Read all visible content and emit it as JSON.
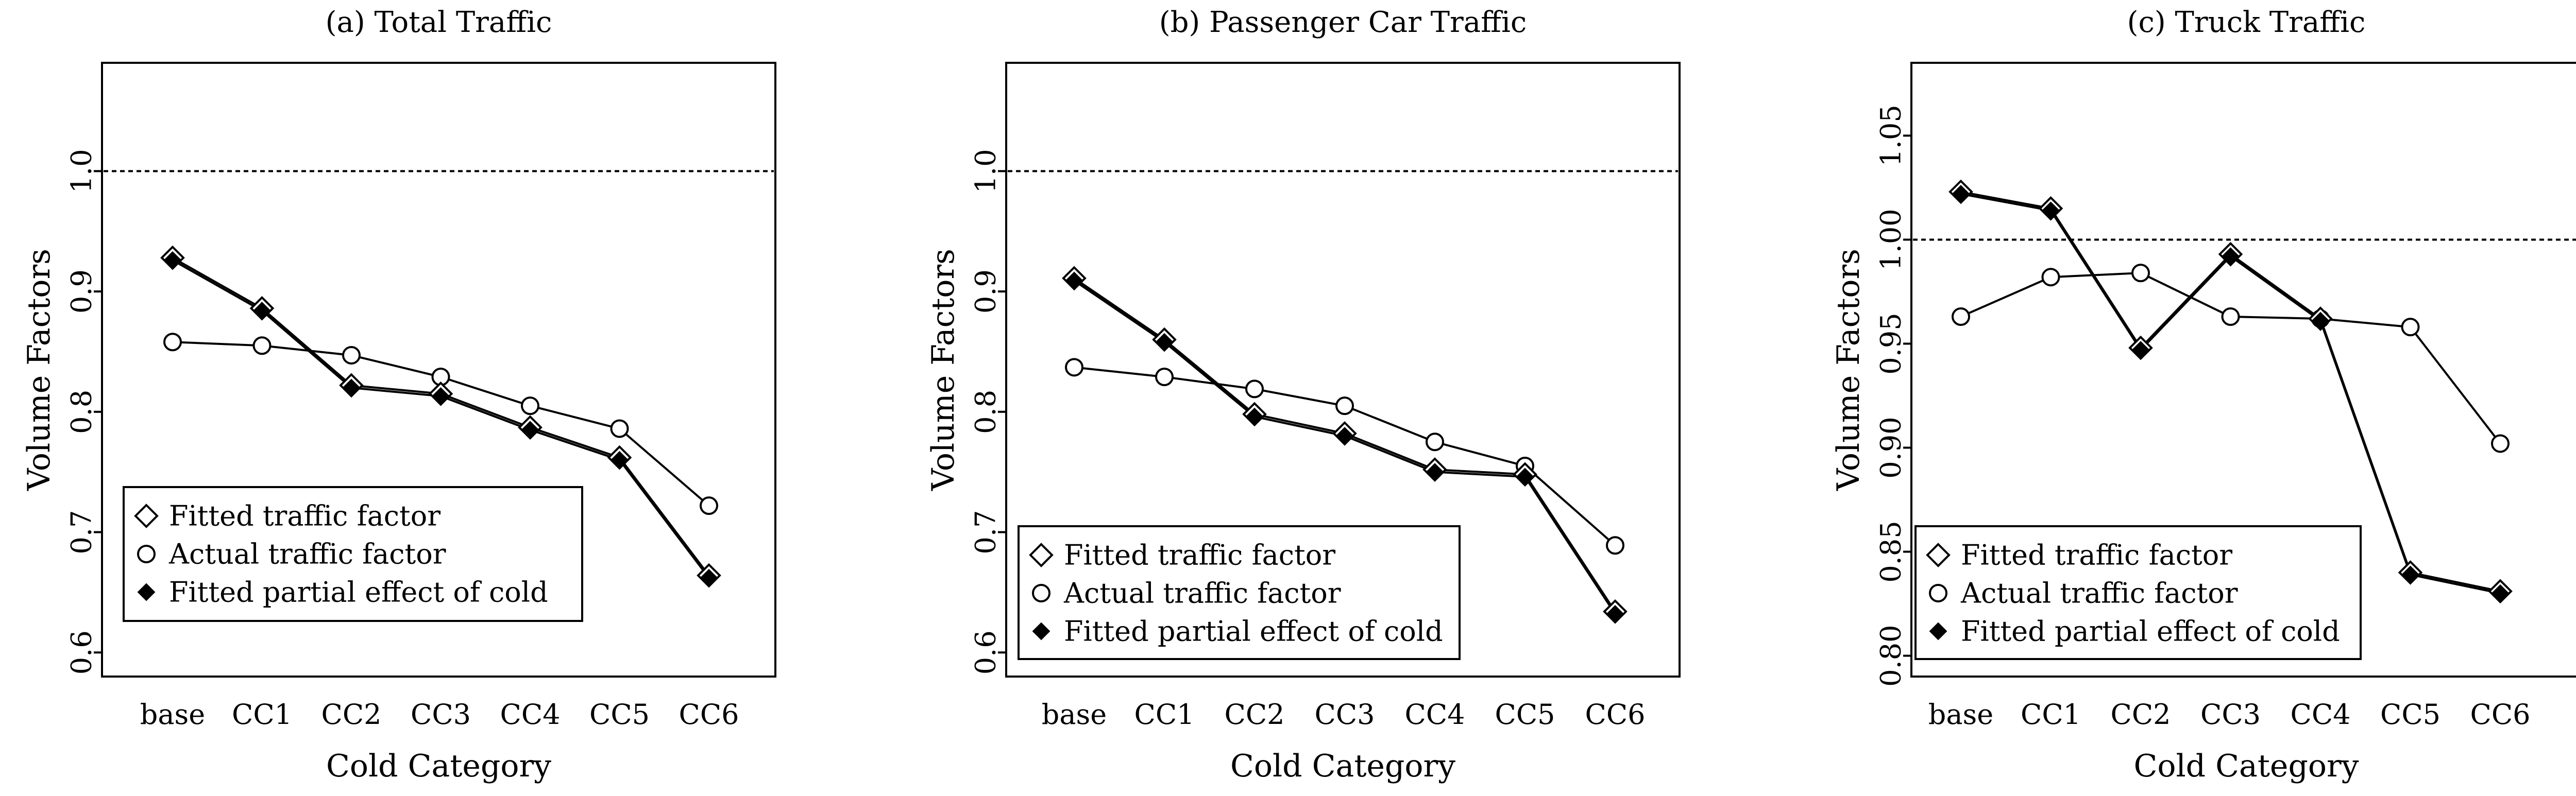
{
  "chart_data": [
    {
      "type": "line",
      "title": "(a) Total Traffic",
      "xlabel": "Cold Category",
      "ylabel": "Volume Factors",
      "categories": [
        "base",
        "CC1",
        "CC2",
        "CC3",
        "CC4",
        "CC5",
        "CC6"
      ],
      "yticks": [
        0.6,
        0.7,
        0.8,
        0.9,
        1.0
      ],
      "ytick_labels": [
        "0.6",
        "0.7",
        "0.8",
        "0.9",
        "1.0"
      ],
      "ylim": [
        0.58,
        1.09
      ],
      "reference_line": 1.0,
      "grid": false,
      "legend_position": "bottom-left",
      "series": [
        {
          "name": "Fitted traffic factor",
          "marker": "diamond-open",
          "values": [
            0.928,
            0.886,
            0.822,
            0.815,
            0.787,
            0.762,
            0.664
          ]
        },
        {
          "name": "Actual traffic factor",
          "marker": "circle-open",
          "values": [
            0.858,
            0.855,
            0.847,
            0.829,
            0.805,
            0.786,
            0.722
          ]
        },
        {
          "name": "Fitted partial effect of cold",
          "marker": "circle-filled",
          "values": [
            0.926,
            0.884,
            0.82,
            0.813,
            0.785,
            0.76,
            0.662
          ]
        }
      ]
    },
    {
      "type": "line",
      "title": "(b) Passenger Car Traffic",
      "xlabel": "Cold Category",
      "ylabel": "Volume Factors",
      "categories": [
        "base",
        "CC1",
        "CC2",
        "CC3",
        "CC4",
        "CC5",
        "CC6"
      ],
      "yticks": [
        0.6,
        0.7,
        0.8,
        0.9,
        1.0
      ],
      "ytick_labels": [
        "0.6",
        "0.7",
        "0.8",
        "0.9",
        "1.0"
      ],
      "ylim": [
        0.58,
        1.09
      ],
      "reference_line": 1.0,
      "grid": false,
      "legend_position": "bottom-left",
      "series": [
        {
          "name": "Fitted traffic factor",
          "marker": "diamond-open",
          "values": [
            0.911,
            0.86,
            0.798,
            0.782,
            0.752,
            0.748,
            0.634
          ]
        },
        {
          "name": "Actual traffic factor",
          "marker": "circle-open",
          "values": [
            0.837,
            0.829,
            0.819,
            0.805,
            0.775,
            0.755,
            0.689
          ]
        },
        {
          "name": "Fitted partial effect of cold",
          "marker": "circle-filled",
          "values": [
            0.909,
            0.858,
            0.796,
            0.78,
            0.75,
            0.746,
            0.632
          ]
        }
      ]
    },
    {
      "type": "line",
      "title": "(c) Truck Traffic",
      "xlabel": "Cold Category",
      "ylabel": "Volume Factors",
      "categories": [
        "base",
        "CC1",
        "CC2",
        "CC3",
        "CC4",
        "CC5",
        "CC6"
      ],
      "yticks": [
        0.8,
        0.85,
        0.9,
        0.95,
        1.0,
        1.05
      ],
      "ytick_labels": [
        "0.80",
        "0.85",
        "0.90",
        "0.95",
        "1.00",
        "1.05"
      ],
      "ylim": [
        0.79,
        1.085
      ],
      "reference_line": 1.0,
      "grid": false,
      "legend_position": "bottom-left",
      "series": [
        {
          "name": "Fitted traffic factor",
          "marker": "diamond-open",
          "values": [
            1.023,
            1.015,
            0.948,
            0.993,
            0.962,
            0.84,
            0.831
          ]
        },
        {
          "name": "Actual traffic factor",
          "marker": "circle-open",
          "values": [
            0.963,
            0.982,
            0.984,
            0.963,
            0.962,
            0.958,
            0.902
          ]
        },
        {
          "name": "Fitted partial effect of cold",
          "marker": "circle-filled",
          "values": [
            1.022,
            1.014,
            0.947,
            0.992,
            0.961,
            0.839,
            0.83
          ]
        }
      ]
    }
  ]
}
